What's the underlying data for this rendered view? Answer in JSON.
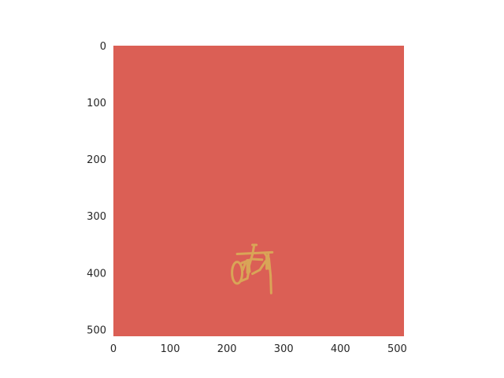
{
  "chart_data": {
    "type": "heatmap",
    "title": "",
    "xlabel": "",
    "ylabel": "",
    "xlim": [
      0,
      512
    ],
    "ylim": [
      512,
      0
    ],
    "x_ticks": [
      "0",
      "100",
      "200",
      "300",
      "400",
      "500"
    ],
    "y_ticks": [
      "0",
      "100",
      "200",
      "300",
      "400",
      "500"
    ],
    "x_tick_values": [
      0,
      100,
      200,
      300,
      400,
      500
    ],
    "y_tick_values": [
      0,
      100,
      200,
      300,
      400,
      500
    ],
    "grid": false,
    "colors": {
      "background": "#db5f55",
      "mask": "#d9a557"
    },
    "mask_segments": [
      {
        "x1": 245,
        "y1": 351,
        "x2": 252,
        "y2": 351
      },
      {
        "x1": 218,
        "y1": 367,
        "x2": 280,
        "y2": 364
      },
      {
        "x1": 248,
        "y1": 352,
        "x2": 245,
        "y2": 368
      },
      {
        "x1": 245,
        "y1": 368,
        "x2": 237,
        "y2": 395
      },
      {
        "x1": 236,
        "y1": 378,
        "x2": 236,
        "y2": 400
      },
      {
        "x1": 238,
        "y1": 378,
        "x2": 240,
        "y2": 398
      },
      {
        "x1": 226,
        "y1": 383,
        "x2": 244,
        "y2": 376
      },
      {
        "x1": 244,
        "y1": 376,
        "x2": 262,
        "y2": 377
      },
      {
        "x1": 266,
        "y1": 365,
        "x2": 272,
        "y2": 374
      },
      {
        "x1": 273,
        "y1": 368,
        "x2": 274,
        "y2": 393
      },
      {
        "x1": 274,
        "y1": 375,
        "x2": 277,
        "y2": 405
      },
      {
        "x1": 277,
        "y1": 405,
        "x2": 278,
        "y2": 436
      },
      {
        "x1": 270,
        "y1": 372,
        "x2": 270,
        "y2": 393
      },
      {
        "x1": 268,
        "y1": 380,
        "x2": 258,
        "y2": 395
      },
      {
        "x1": 258,
        "y1": 395,
        "x2": 245,
        "y2": 402
      },
      {
        "x1": 238,
        "y1": 400,
        "x2": 236,
        "y2": 410
      },
      {
        "x1": 236,
        "y1": 410,
        "x2": 224,
        "y2": 415
      },
      {
        "x1": 228,
        "y1": 395,
        "x2": 232,
        "y2": 384
      }
    ],
    "mask_ellipse": {
      "cx": 218,
      "cy": 400,
      "rx": 9,
      "ry": 19
    }
  }
}
